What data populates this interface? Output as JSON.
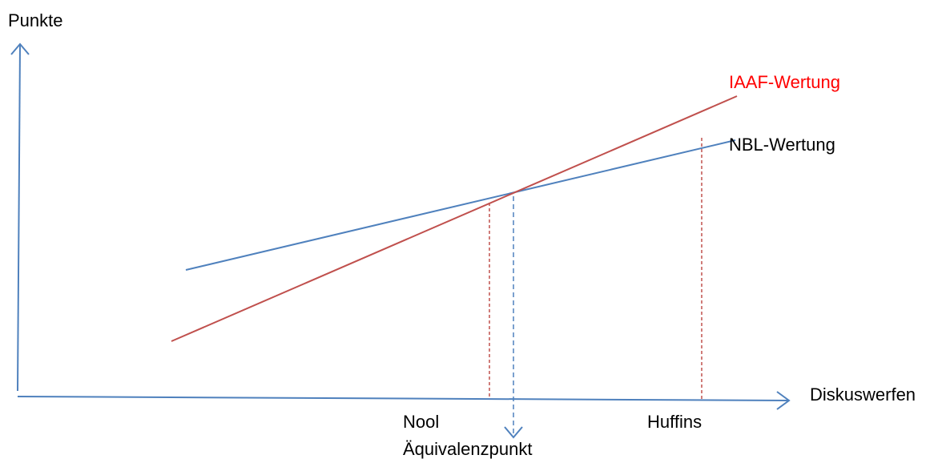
{
  "axes": {
    "y_label": "Punkte",
    "x_label": "Diskuswerfen"
  },
  "lines": {
    "iaaf": {
      "label": "IAAF-Wertung",
      "color": "#c0504d"
    },
    "nbl": {
      "label": "NBL-Wertung",
      "color": "#4f81bd"
    }
  },
  "markers": {
    "nool": "Nool",
    "huffins": "Huffins",
    "equivalence": "Äquivalenzpunkt"
  },
  "colors": {
    "axis": "#4f81bd",
    "text": "#000000",
    "iaaf_text": "#ff0000"
  }
}
